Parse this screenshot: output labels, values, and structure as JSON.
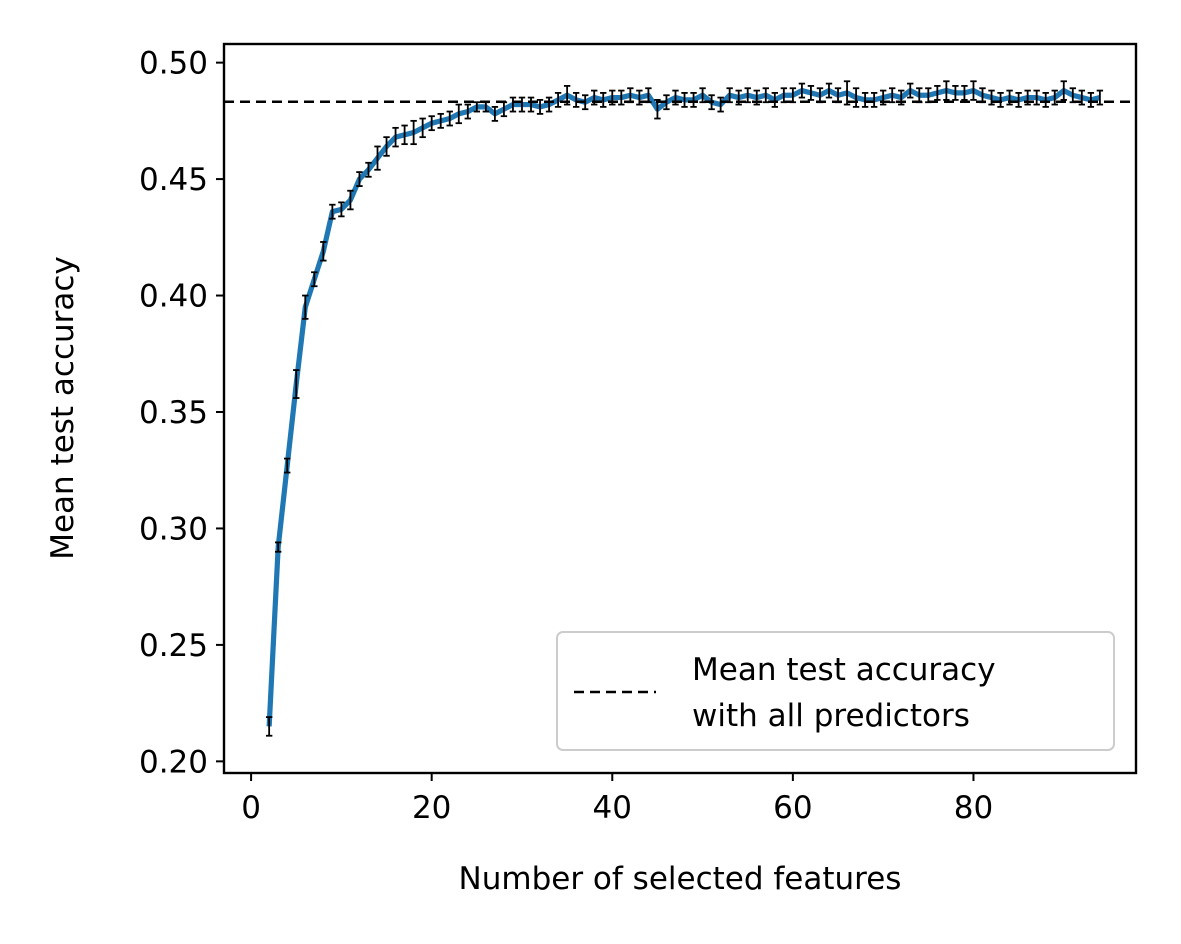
{
  "chart_data": {
    "type": "line",
    "title": "",
    "xlabel": "Number of selected features",
    "ylabel": "Mean test accuracy",
    "xlim": [
      -3,
      98
    ],
    "ylim": [
      0.195,
      0.508
    ],
    "xticks": [
      0,
      20,
      40,
      60,
      80
    ],
    "xtick_labels": [
      "0",
      "20",
      "40",
      "60",
      "80"
    ],
    "yticks": [
      0.2,
      0.25,
      0.3,
      0.35,
      0.4,
      0.45,
      0.5
    ],
    "ytick_labels": [
      "0.20",
      "0.25",
      "0.30",
      "0.35",
      "0.40",
      "0.45",
      "0.50"
    ],
    "grid": false,
    "legend_position": "lower-right",
    "colors": {
      "series": "#1f77b4",
      "reference": "#000000",
      "errorbar": "#000000"
    },
    "series": [
      {
        "x": [
          2,
          3,
          4,
          5,
          6,
          7,
          8,
          9,
          10,
          11,
          12,
          13,
          14,
          15,
          16,
          17,
          18,
          19,
          20,
          21,
          22,
          23,
          24,
          25,
          26,
          27,
          28,
          29,
          30,
          31,
          32,
          33,
          34,
          35,
          36,
          37,
          38,
          39,
          40,
          41,
          42,
          43,
          44,
          45,
          46,
          47,
          48,
          49,
          50,
          51,
          52,
          53,
          54,
          55,
          56,
          57,
          58,
          59,
          60,
          61,
          62,
          63,
          64,
          65,
          66,
          67,
          68,
          69,
          70,
          71,
          72,
          73,
          74,
          75,
          76,
          77,
          78,
          79,
          80,
          81,
          82,
          83,
          84,
          85,
          86,
          87,
          88,
          89,
          90,
          91,
          92,
          93,
          94
        ],
        "values": [
          0.215,
          0.292,
          0.327,
          0.362,
          0.395,
          0.407,
          0.419,
          0.436,
          0.437,
          0.441,
          0.45,
          0.454,
          0.459,
          0.464,
          0.468,
          0.469,
          0.47,
          0.472,
          0.474,
          0.475,
          0.476,
          0.478,
          0.479,
          0.481,
          0.481,
          0.478,
          0.48,
          0.482,
          0.482,
          0.482,
          0.481,
          0.482,
          0.484,
          0.486,
          0.484,
          0.483,
          0.485,
          0.484,
          0.485,
          0.485,
          0.486,
          0.485,
          0.486,
          0.48,
          0.483,
          0.485,
          0.484,
          0.484,
          0.486,
          0.483,
          0.482,
          0.486,
          0.485,
          0.486,
          0.485,
          0.486,
          0.484,
          0.486,
          0.486,
          0.488,
          0.487,
          0.486,
          0.488,
          0.486,
          0.487,
          0.485,
          0.484,
          0.484,
          0.485,
          0.486,
          0.485,
          0.488,
          0.486,
          0.486,
          0.487,
          0.488,
          0.487,
          0.487,
          0.488,
          0.486,
          0.485,
          0.484,
          0.485,
          0.484,
          0.485,
          0.485,
          0.484,
          0.485,
          0.488,
          0.486,
          0.485,
          0.484,
          0.485
        ],
        "errors": [
          0.004,
          0.002,
          0.003,
          0.006,
          0.005,
          0.003,
          0.004,
          0.003,
          0.003,
          0.004,
          0.003,
          0.003,
          0.005,
          0.004,
          0.004,
          0.004,
          0.005,
          0.004,
          0.003,
          0.003,
          0.003,
          0.004,
          0.003,
          0.002,
          0.002,
          0.003,
          0.003,
          0.003,
          0.003,
          0.003,
          0.003,
          0.003,
          0.003,
          0.004,
          0.003,
          0.003,
          0.003,
          0.003,
          0.003,
          0.003,
          0.003,
          0.003,
          0.003,
          0.004,
          0.003,
          0.003,
          0.003,
          0.003,
          0.003,
          0.003,
          0.003,
          0.003,
          0.003,
          0.003,
          0.003,
          0.003,
          0.003,
          0.003,
          0.003,
          0.003,
          0.003,
          0.003,
          0.003,
          0.003,
          0.005,
          0.004,
          0.003,
          0.003,
          0.003,
          0.003,
          0.003,
          0.003,
          0.003,
          0.003,
          0.003,
          0.004,
          0.003,
          0.003,
          0.004,
          0.003,
          0.003,
          0.003,
          0.003,
          0.003,
          0.003,
          0.003,
          0.003,
          0.003,
          0.004,
          0.003,
          0.003,
          0.003,
          0.003
        ]
      }
    ],
    "reference_line": {
      "y": 0.4832,
      "label_lines": [
        "Mean test accuracy",
        "with all predictors"
      ]
    }
  }
}
